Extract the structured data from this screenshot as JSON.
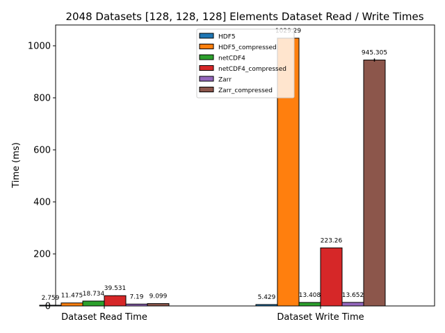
{
  "chart_data": {
    "type": "bar",
    "title": "2048 Datasets [128, 128, 128] Elements Dataset Read / Write Times",
    "xlabel": "",
    "ylabel": "Time (ms)",
    "ylim": [
      0,
      1080
    ],
    "yticks": [
      0,
      200,
      400,
      600,
      800,
      1000
    ],
    "grid": false,
    "legend_position": "top-center",
    "categories": [
      "Dataset Read Time",
      "Dataset Write Time"
    ],
    "series": [
      {
        "name": "HDF5",
        "color": "#1f77b4",
        "values": [
          2.759,
          5.429
        ],
        "labels": [
          "2.759",
          "5.429"
        ],
        "errors": [
          0,
          0
        ]
      },
      {
        "name": "HDF5_compressed",
        "color": "#ff7f0e",
        "values": [
          11.475,
          1029.29
        ],
        "labels": [
          "11.475",
          "1029.29"
        ],
        "errors": [
          0,
          0
        ]
      },
      {
        "name": "netCDF4",
        "color": "#2ca02c",
        "values": [
          18.734,
          13.408
        ],
        "labels": [
          "18.734",
          "13.408"
        ],
        "errors": [
          0,
          0
        ]
      },
      {
        "name": "netCDF4_compressed",
        "color": "#d62728",
        "values": [
          39.531,
          223.26
        ],
        "labels": [
          "39.531",
          "223.26"
        ],
        "errors": [
          1,
          0
        ]
      },
      {
        "name": "Zarr",
        "color": "#9467bd",
        "values": [
          7.19,
          13.652
        ],
        "labels": [
          "7.19",
          "13.652"
        ],
        "errors": [
          0,
          0
        ]
      },
      {
        "name": "Zarr_compressed",
        "color": "#8c564b",
        "values": [
          9.099,
          945.305
        ],
        "labels": [
          "9.099",
          "945.305"
        ],
        "errors": [
          0,
          6
        ]
      }
    ]
  }
}
